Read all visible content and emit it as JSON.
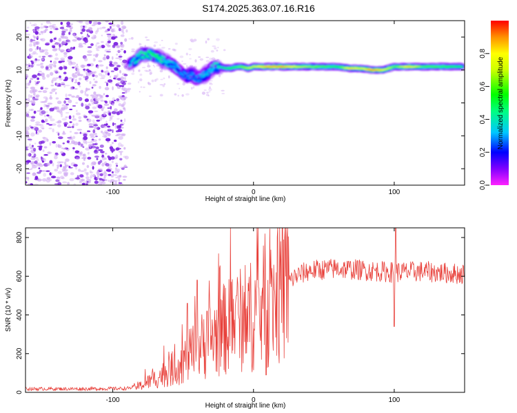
{
  "figure": {
    "title": "S174.2025.363.07.16.R16"
  },
  "chart_data": [
    {
      "type": "heatmap",
      "title": "S174.2025.363.07.16.R16",
      "xlabel": "Height of straight line (km)",
      "ylabel": "Frequency (Hz)",
      "xlim": [
        -162,
        150
      ],
      "ylim": [
        -25,
        25
      ],
      "x_ticks": [
        -100,
        0,
        100
      ],
      "y_ticks": [
        -20,
        -10,
        0,
        10,
        20
      ],
      "colorbar": {
        "label": "Normalized spectral amplitude",
        "range": [
          0,
          1
        ],
        "ticks": [
          "0.0",
          "0.2",
          "0.4",
          "0.6",
          "0.8"
        ],
        "colormap": "rainbow (magenta-blue-cyan-green-yellow-red)"
      },
      "noise_region_x": [
        -162,
        -90
      ],
      "ridge": [
        {
          "x": -88,
          "y": 11.5,
          "v": 0.35
        },
        {
          "x": -84,
          "y": 13,
          "v": 0.4
        },
        {
          "x": -80,
          "y": 14.5,
          "v": 0.45
        },
        {
          "x": -76,
          "y": 15,
          "v": 0.5
        },
        {
          "x": -72,
          "y": 14.5,
          "v": 0.5
        },
        {
          "x": -68,
          "y": 14,
          "v": 0.5
        },
        {
          "x": -64,
          "y": 13,
          "v": 0.4
        },
        {
          "x": -60,
          "y": 12,
          "v": 0.35
        },
        {
          "x": -56,
          "y": 11,
          "v": 0.35
        },
        {
          "x": -52,
          "y": 9.5,
          "v": 0.3
        },
        {
          "x": -48,
          "y": 8,
          "v": 0.3
        },
        {
          "x": -44,
          "y": 8.5,
          "v": 0.3
        },
        {
          "x": -40,
          "y": 7,
          "v": 0.3
        },
        {
          "x": -36,
          "y": 8,
          "v": 0.35
        },
        {
          "x": -32,
          "y": 9.5,
          "v": 0.35
        },
        {
          "x": -28,
          "y": 11,
          "v": 0.4
        },
        {
          "x": -24,
          "y": 11,
          "v": 0.45
        },
        {
          "x": -20,
          "y": 10.5,
          "v": 0.5
        },
        {
          "x": -16,
          "y": 10.5,
          "v": 0.55
        },
        {
          "x": -12,
          "y": 11,
          "v": 0.6
        },
        {
          "x": -8,
          "y": 11,
          "v": 0.65
        },
        {
          "x": -4,
          "y": 10.5,
          "v": 0.7
        },
        {
          "x": 0,
          "y": 11,
          "v": 0.75
        },
        {
          "x": 10,
          "y": 11,
          "v": 0.9
        },
        {
          "x": 20,
          "y": 11,
          "v": 0.9
        },
        {
          "x": 30,
          "y": 11,
          "v": 0.75
        },
        {
          "x": 40,
          "y": 11,
          "v": 0.65
        },
        {
          "x": 50,
          "y": 11,
          "v": 0.6
        },
        {
          "x": 60,
          "y": 11,
          "v": 0.55
        },
        {
          "x": 68,
          "y": 10.5,
          "v": 0.85
        },
        {
          "x": 76,
          "y": 10.5,
          "v": 0.75
        },
        {
          "x": 84,
          "y": 10,
          "v": 0.95
        },
        {
          "x": 92,
          "y": 10,
          "v": 0.8
        },
        {
          "x": 100,
          "y": 11,
          "v": 0.6
        },
        {
          "x": 110,
          "y": 11,
          "v": 0.85
        },
        {
          "x": 120,
          "y": 11,
          "v": 0.6
        },
        {
          "x": 130,
          "y": 11,
          "v": 0.6
        },
        {
          "x": 140,
          "y": 11,
          "v": 0.55
        },
        {
          "x": 148,
          "y": 11,
          "v": 0.5
        }
      ]
    },
    {
      "type": "line",
      "xlabel": "Height of straight line (km)",
      "ylabel": "SNR (10 * v/v)",
      "xlim": [
        -162,
        150
      ],
      "ylim": [
        0,
        850
      ],
      "x_ticks": [
        -100,
        0,
        100
      ],
      "y_ticks": [
        0,
        200,
        400,
        600,
        800
      ],
      "color": "#e8403a",
      "envelope": {
        "x": [
          -162,
          -120,
          -90,
          -80,
          -70,
          -60,
          -50,
          -40,
          -30,
          -20,
          -10,
          0,
          10,
          20,
          30,
          40,
          60,
          80,
          100,
          120,
          150
        ],
        "y": [
          18,
          18,
          20,
          35,
          70,
          110,
          160,
          220,
          280,
          330,
          370,
          400,
          450,
          540,
          600,
          630,
          640,
          630,
          620,
          625,
          610
        ]
      },
      "spikes": [
        {
          "x": -77,
          "y": 120
        },
        {
          "x": -56,
          "y": 250
        },
        {
          "x": -47,
          "y": 460
        },
        {
          "x": -40,
          "y": 580
        },
        {
          "x": -33,
          "y": 420
        },
        {
          "x": -20,
          "y": 540
        },
        {
          "x": -12,
          "y": 500
        },
        {
          "x": 8,
          "y": 820
        },
        {
          "x": 9,
          "y": 90
        },
        {
          "x": 12,
          "y": 560
        },
        {
          "x": 100,
          "y": 340
        },
        {
          "x": 101,
          "y": 850
        }
      ]
    }
  ]
}
